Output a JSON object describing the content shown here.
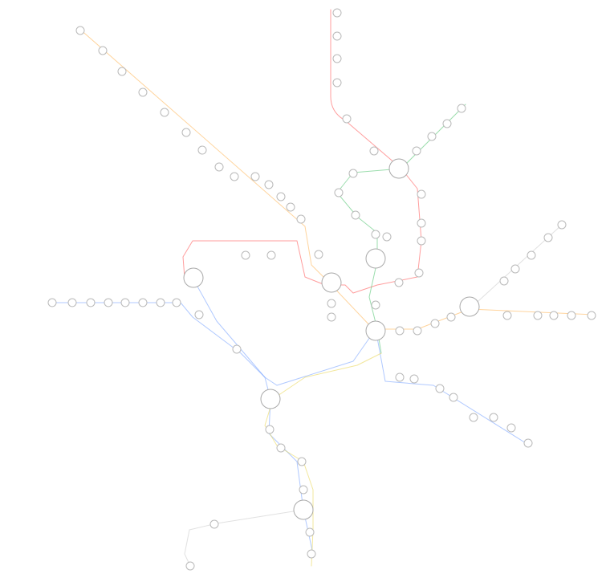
{
  "map": {
    "title": "",
    "lines": [
      {
        "id": "red",
        "color": "#ff4d4d"
      },
      {
        "id": "orange",
        "color": "#ffb14d"
      },
      {
        "id": "blue",
        "color": "#6f9cff"
      },
      {
        "id": "green",
        "color": "#49c16a"
      },
      {
        "id": "yellow",
        "color": "#e8d34a"
      },
      {
        "id": "silver",
        "color": "#c9c9c9"
      }
    ],
    "legend": []
  }
}
